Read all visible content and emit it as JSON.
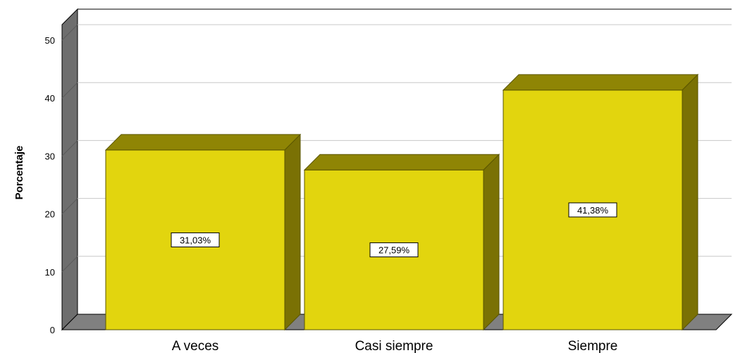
{
  "chart_data": {
    "type": "bar",
    "categories": [
      "A veces",
      "Casi siempre",
      "Siempre"
    ],
    "values": [
      31.03,
      27.59,
      41.38
    ],
    "data_labels": [
      "31,03%",
      "27,59%",
      "41,38%"
    ],
    "ylabel": "Porcentaje",
    "ylim": [
      0,
      50
    ],
    "yticks": [
      0,
      10,
      20,
      30,
      40,
      50
    ],
    "grid": true,
    "style": "3d",
    "colors": {
      "bar_front": "#e2d50e",
      "bar_top": "#8f8505",
      "bar_side": "#7a7104",
      "wall": "#6e6e6e",
      "floor": "#808080",
      "grid": "#c8c8c8",
      "label_border": "#000000"
    }
  }
}
